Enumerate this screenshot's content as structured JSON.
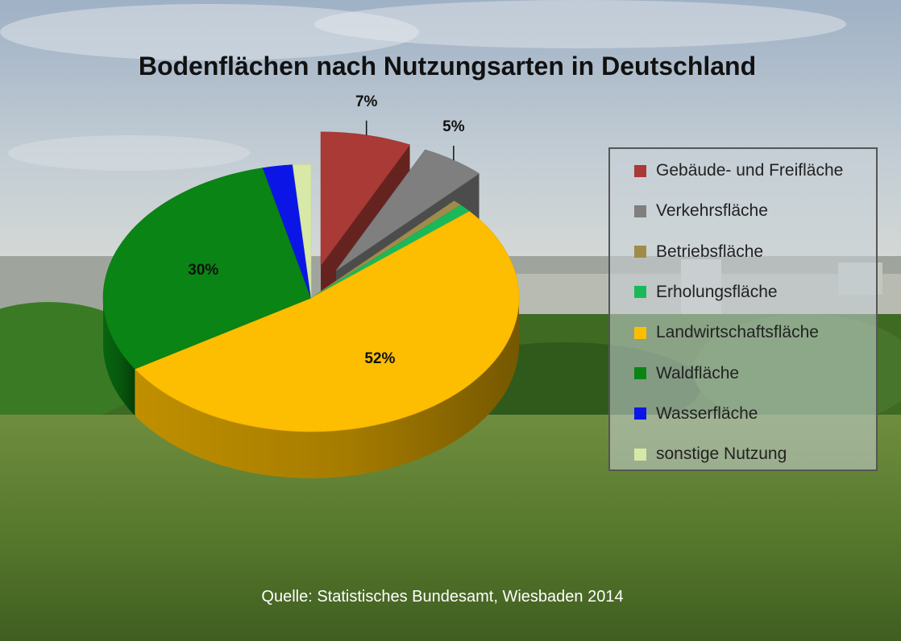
{
  "chart_data": {
    "type": "pie",
    "title": "Bodenflächen nach Nutzungsarten in Deutschland",
    "categories": [
      "Gebäude- und Freifläche",
      "Verkehrsfläche",
      "Betriebsfläche",
      "Erholungsfläche",
      "Landwirtschaftsfläche",
      "Waldfläche",
      "Wasserfläche",
      "sonstige Nutzung"
    ],
    "values": [
      7,
      5,
      0.7,
      1,
      52,
      30,
      2.3,
      1.4
    ],
    "data_labels": [
      "7%",
      "5%",
      "",
      "",
      "52%",
      "30%",
      "",
      ""
    ],
    "colors": [
      "#a93a36",
      "#7f7f7f",
      "#a08c4a",
      "#19b95a",
      "#fdbd00",
      "#0a8414",
      "#0b16e6",
      "#d8e8a6"
    ],
    "exploded": [
      true,
      true,
      false,
      false,
      false,
      false,
      false,
      false
    ],
    "legend_position": "right",
    "source": "Quelle: Statistisches Bundesamt, Wiesbaden 2014"
  }
}
